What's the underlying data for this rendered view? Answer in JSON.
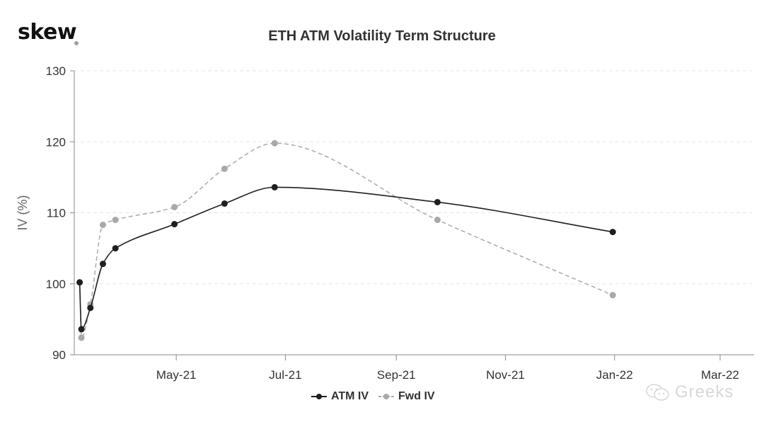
{
  "brand": {
    "logo_text": "skew"
  },
  "watermark": {
    "text": "Greeks",
    "icon": "wechat-icon"
  },
  "colors": {
    "atm": "#1f1f1f",
    "fwd": "#a9a9a9",
    "grid": "#e6e6e6",
    "axis": "#888888"
  },
  "chart_data": {
    "type": "line",
    "title": "ETH ATM Volatility Term Structure",
    "xlabel": "",
    "ylabel": "IV (%)",
    "ylim": [
      90,
      130
    ],
    "yticks": [
      90,
      100,
      110,
      120,
      130
    ],
    "xlim": [
      "2021-03-05",
      "2022-03-20"
    ],
    "xticks": [
      {
        "date": "2021-05-01",
        "label": "May-21"
      },
      {
        "date": "2021-07-01",
        "label": "Jul-21"
      },
      {
        "date": "2021-09-01",
        "label": "Sep-21"
      },
      {
        "date": "2021-11-01",
        "label": "Nov-21"
      },
      {
        "date": "2022-01-01",
        "label": "Jan-22"
      },
      {
        "date": "2022-03-01",
        "label": "Mar-22"
      }
    ],
    "grid": true,
    "legend_position": "bottom-center",
    "series": [
      {
        "name": "ATM IV",
        "style": "solid",
        "points": [
          {
            "x": "2021-03-08",
            "y": 100.2
          },
          {
            "x": "2021-03-09",
            "y": 93.6
          },
          {
            "x": "2021-03-14",
            "y": 96.6
          },
          {
            "x": "2021-03-21",
            "y": 102.8
          },
          {
            "x": "2021-03-28",
            "y": 105.0
          },
          {
            "x": "2021-04-30",
            "y": 108.4
          },
          {
            "x": "2021-05-28",
            "y": 111.3
          },
          {
            "x": "2021-06-25",
            "y": 113.6
          },
          {
            "x": "2021-09-24",
            "y": 111.5
          },
          {
            "x": "2021-12-31",
            "y": 107.3
          }
        ]
      },
      {
        "name": "Fwd IV",
        "style": "dashed",
        "points": [
          {
            "x": "2021-03-08",
            "y": 100.2
          },
          {
            "x": "2021-03-09",
            "y": 92.4
          },
          {
            "x": "2021-03-14",
            "y": 97.1
          },
          {
            "x": "2021-03-21",
            "y": 108.3
          },
          {
            "x": "2021-03-28",
            "y": 109.0
          },
          {
            "x": "2021-04-30",
            "y": 110.8
          },
          {
            "x": "2021-05-28",
            "y": 116.2
          },
          {
            "x": "2021-06-25",
            "y": 119.8
          },
          {
            "x": "2021-09-24",
            "y": 109.0
          },
          {
            "x": "2021-12-31",
            "y": 98.4
          }
        ]
      }
    ]
  }
}
